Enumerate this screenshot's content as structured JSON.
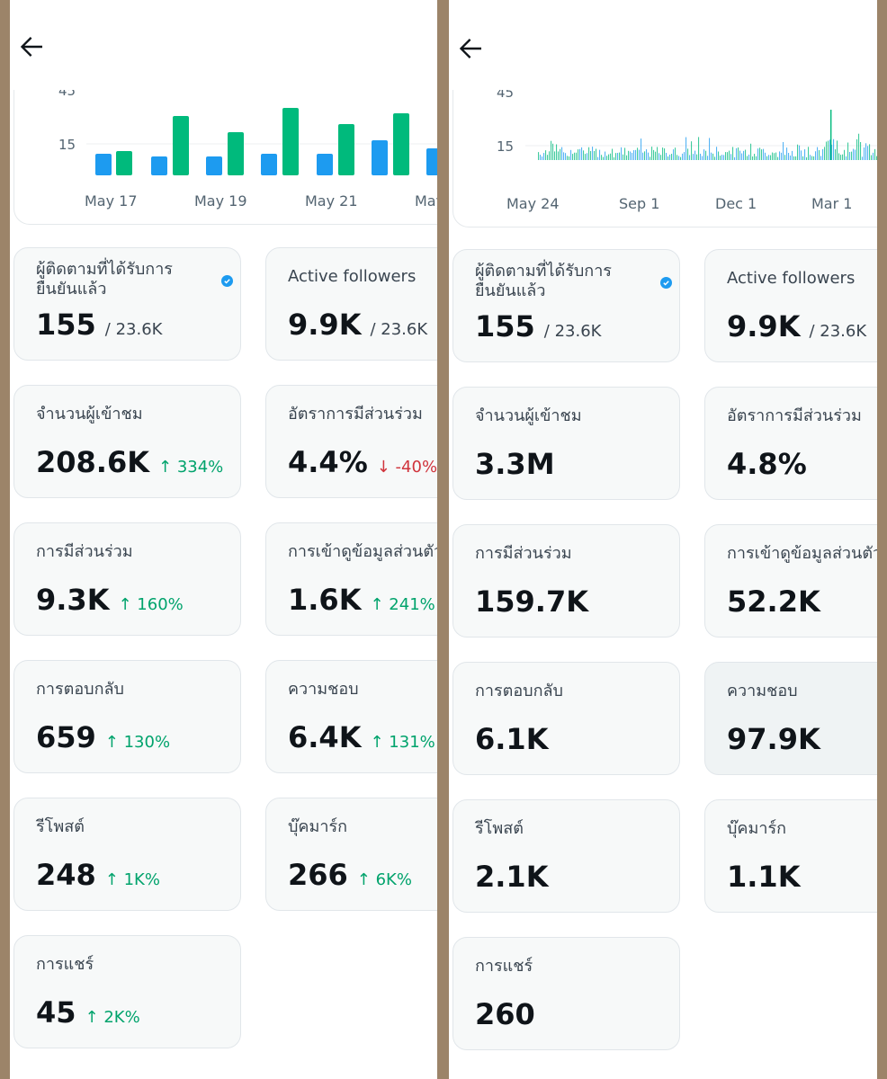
{
  "left": {
    "chart": {
      "type": "bar",
      "y_ticks": [
        "45",
        "15"
      ],
      "x_labels": [
        "May 17",
        "May 19",
        "May 21",
        "May"
      ],
      "colors": {
        "series_a": "#1d9bf0",
        "series_b": "#00ba7c"
      },
      "series_a": [
        8,
        7,
        7,
        8,
        8,
        13,
        10
      ],
      "series_b": [
        9,
        22,
        16,
        25,
        19,
        23
      ]
    },
    "cards": [
      {
        "label": "ผู้ติดตามที่ได้รับการยืนยันแล้ว",
        "value": "155",
        "total": "/ 23.6K",
        "delta": "",
        "verified": true
      },
      {
        "label": "Active followers",
        "value": "9.9K",
        "total": "/ 23.6K",
        "delta": ""
      },
      {
        "label": "จำนวนผู้เข้าชม",
        "value": "208.6K",
        "delta": "↑ 334%",
        "delta_dir": "up"
      },
      {
        "label": "อัตราการมีส่วนร่วม",
        "value": "4.4%",
        "delta": "↓ -40%",
        "delta_dir": "down"
      },
      {
        "label": "การมีส่วนร่วม",
        "value": "9.3K",
        "delta": "↑ 160%",
        "delta_dir": "up"
      },
      {
        "label": "การเข้าดูข้อมูลส่วนตัว",
        "value": "1.6K",
        "delta": "↑ 241%",
        "delta_dir": "up"
      },
      {
        "label": "การตอบกลับ",
        "value": "659",
        "delta": "↑ 130%",
        "delta_dir": "up"
      },
      {
        "label": "ความชอบ",
        "value": "6.4K",
        "delta": "↑ 131%",
        "delta_dir": "up"
      },
      {
        "label": "รีโพสต์",
        "value": "248",
        "delta": "↑ 1K%",
        "delta_dir": "up"
      },
      {
        "label": "บุ๊คมาร์ก",
        "value": "266",
        "delta": "↑ 6K%",
        "delta_dir": "up"
      },
      {
        "label": "การแชร์",
        "value": "45",
        "delta": "↑ 2K%",
        "delta_dir": "up"
      }
    ]
  },
  "right": {
    "chart": {
      "type": "bar",
      "y_ticks": [
        "45",
        "15"
      ],
      "x_labels": [
        "May 24",
        "Sep 1",
        "Dec 1",
        "Mar 1"
      ],
      "colors": {
        "series_a": "#1d9bf0",
        "series_b": "#00ba7c"
      }
    },
    "cards": [
      {
        "label": "ผู้ติดตามที่ได้รับการยืนยันแล้ว",
        "value": "155",
        "total": "/ 23.6K",
        "delta": "",
        "verified": true
      },
      {
        "label": "Active followers",
        "value": "9.9K",
        "total": "/ 23.6K",
        "delta": ""
      },
      {
        "label": "จำนวนผู้เข้าชม",
        "value": "3.3M",
        "delta": ""
      },
      {
        "label": "อัตราการมีส่วนร่วม",
        "value": "4.8%",
        "delta": ""
      },
      {
        "label": "การมีส่วนร่วม",
        "value": "159.7K",
        "delta": ""
      },
      {
        "label": "การเข้าดูข้อมูลส่วนตัว",
        "value": "52.2K",
        "delta": ""
      },
      {
        "label": "การตอบกลับ",
        "value": "6.1K",
        "delta": ""
      },
      {
        "label": "ความชอบ",
        "value": "97.9K",
        "delta": ""
      },
      {
        "label": "รีโพสต์",
        "value": "2.1K",
        "delta": ""
      },
      {
        "label": "บุ๊คมาร์ก",
        "value": "1.1K",
        "delta": ""
      },
      {
        "label": "การแชร์",
        "value": "260",
        "delta": ""
      }
    ]
  }
}
